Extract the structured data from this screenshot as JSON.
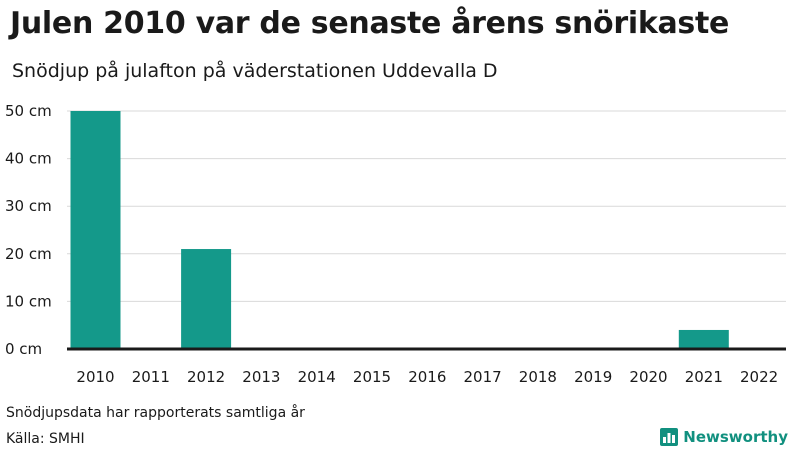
{
  "title": "Julen 2010 var de senaste årens snörikaste",
  "subtitle": "Snödjup på julafton på väderstationen Uddevalla D",
  "note": "Snödjupsdata har rapporterats samtliga år",
  "source": "Källa: SMHI",
  "brand": {
    "name": "Newsworthy",
    "icon": "bar-chart-icon",
    "color": "#11907f"
  },
  "chart_data": {
    "type": "bar",
    "categories": [
      "2010",
      "2011",
      "2012",
      "2013",
      "2014",
      "2015",
      "2016",
      "2017",
      "2018",
      "2019",
      "2020",
      "2021",
      "2022"
    ],
    "values": [
      50,
      0,
      21,
      0,
      0,
      0,
      0,
      0,
      0,
      0,
      0,
      4,
      0
    ],
    "unit": "cm",
    "ylim": [
      0,
      50
    ],
    "yticks": [
      0,
      10,
      20,
      30,
      40,
      50
    ],
    "ytick_labels": [
      "0 cm",
      "10 cm",
      "20 cm",
      "30 cm",
      "40 cm",
      "50 cm"
    ],
    "title": "Julen 2010 var de senaste årens snörikaste",
    "xlabel": "",
    "ylabel": "",
    "grid": true,
    "bar_color": "#14998a"
  }
}
